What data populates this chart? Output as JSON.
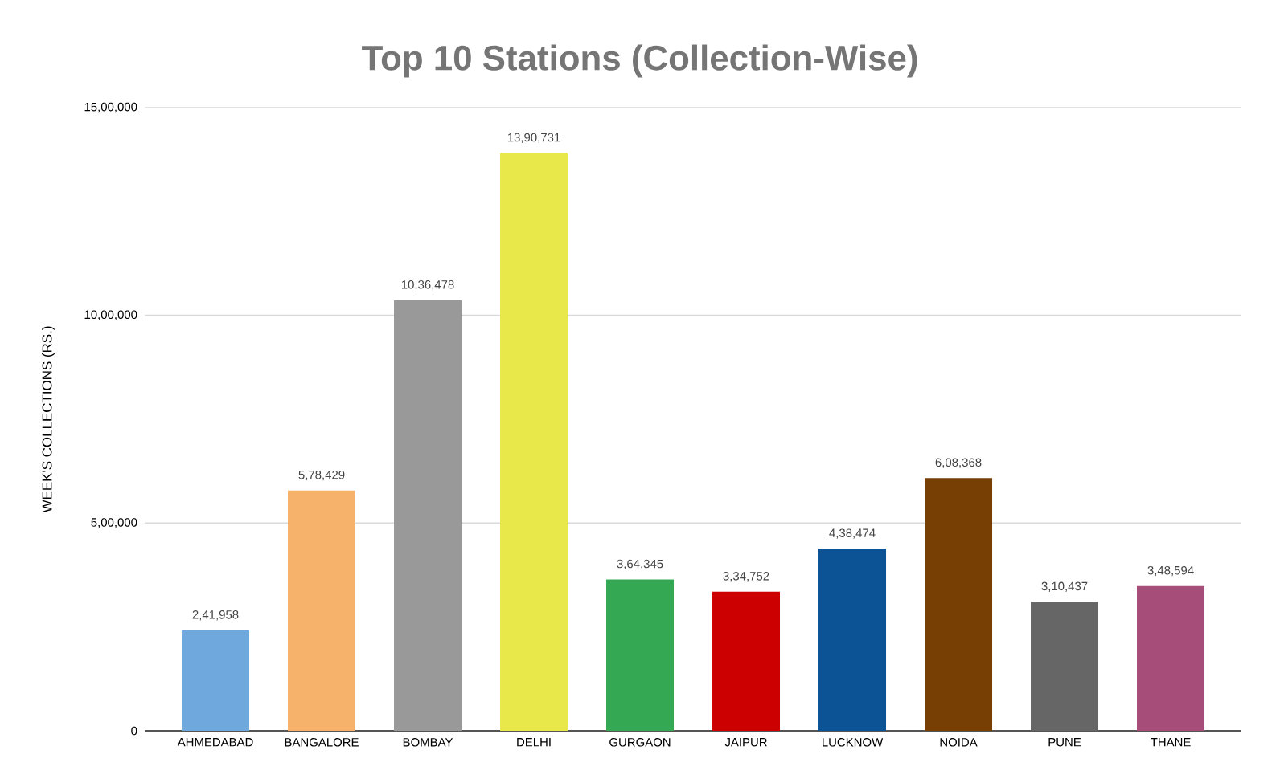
{
  "chart_data": {
    "type": "bar",
    "title": "Top 10 Stations (Collection-Wise)",
    "ylabel": "WEEK'S COLLECTIONS (RS.)",
    "categories": [
      "AHMEDABAD",
      "BANGALORE",
      "BOMBAY",
      "DELHI",
      "GURGAON",
      "JAIPUR",
      "LUCKNOW",
      "NOIDA",
      "PUNE",
      "THANE"
    ],
    "values": [
      241958,
      578429,
      1036478,
      1390731,
      364345,
      334752,
      438474,
      608368,
      310437,
      348594
    ],
    "colors": [
      "#6fa8dc",
      "#f6b26b",
      "#999999",
      "#e8e84a",
      "#34a853",
      "#cc0000",
      "#0b5394",
      "#783f04",
      "#666666",
      "#a64d79"
    ],
    "value_labels": [
      "2,41,958",
      "5,78,429",
      "10,36,478",
      "13,90,731",
      "3,64,345",
      "3,34,752",
      "4,38,474",
      "6,08,368",
      "3,10,437",
      "3,48,594"
    ],
    "ylim": [
      0,
      1500000
    ],
    "yticks": [
      0,
      {
        "value": 500000,
        "label": "5,00,000"
      },
      {
        "value": 1000000,
        "label": "10,00,000"
      },
      {
        "value": 1500000,
        "label": "15,00,000"
      }
    ],
    "grid": "y"
  }
}
